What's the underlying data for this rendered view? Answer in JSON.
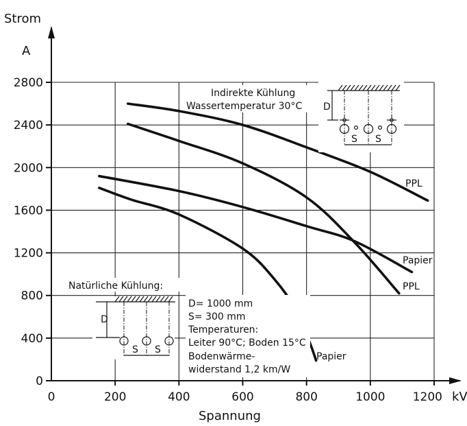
{
  "chart_data": {
    "type": "line",
    "xlabel": "Spannung",
    "xunit": "kV",
    "ylabel": "Strom",
    "yunit": "A",
    "xlim": [
      0,
      1200
    ],
    "ylim": [
      0,
      2800
    ],
    "x_ticks": [
      0,
      200,
      400,
      600,
      800,
      1000,
      1200
    ],
    "y_ticks": [
      0,
      400,
      800,
      1200,
      1600,
      2000,
      2400,
      2800
    ],
    "x_tick_labels": [
      "0",
      "200",
      "400",
      "600",
      "800",
      "1000",
      "1200"
    ],
    "y_tick_labels": [
      "0",
      "400",
      "800",
      "1200",
      "1600",
      "2000",
      "2400",
      "2800"
    ],
    "grid": true,
    "series": [
      {
        "name": "PPL",
        "group": "Indirekte Kühlung",
        "points": [
          [
            240,
            2600
          ],
          [
            400,
            2530
          ],
          [
            600,
            2400
          ],
          [
            800,
            2190
          ],
          [
            1000,
            1960
          ],
          [
            1180,
            1690
          ]
        ]
      },
      {
        "name": "PPL",
        "group": "Natürliche Kühlung",
        "points": [
          [
            240,
            2410
          ],
          [
            400,
            2250
          ],
          [
            600,
            2040
          ],
          [
            800,
            1720
          ],
          [
            950,
            1300
          ],
          [
            1090,
            820
          ]
        ]
      },
      {
        "name": "Papier",
        "group": "Natürliche Kühlung",
        "points": [
          [
            150,
            1920
          ],
          [
            400,
            1780
          ],
          [
            600,
            1630
          ],
          [
            800,
            1450
          ],
          [
            950,
            1310
          ],
          [
            1130,
            1020
          ]
        ]
      },
      {
        "name": "Papier",
        "group": "Indirekte Kühlung",
        "points": [
          [
            150,
            1810
          ],
          [
            250,
            1700
          ],
          [
            400,
            1560
          ],
          [
            600,
            1240
          ],
          [
            700,
            950
          ],
          [
            770,
            650
          ],
          [
            810,
            360
          ],
          [
            830,
            190
          ]
        ]
      }
    ]
  },
  "annotations": {
    "indirect_title": "Indirekte Kühlung",
    "water_temp": "Wassertemperatur 30°C",
    "natural_title": "Natürliche Kühlung:",
    "dim_D": "D",
    "dim_S": "S",
    "params": [
      "D= 1000 mm",
      "S=   300 mm",
      "Temperaturen:",
      "Leiter 90°C; Boden 15°C",
      "Bodenwärme-",
      "widerstand 1,2 km/W"
    ]
  },
  "curve_labels": [
    "PPL",
    "Papier",
    "PPL",
    "Papier"
  ]
}
